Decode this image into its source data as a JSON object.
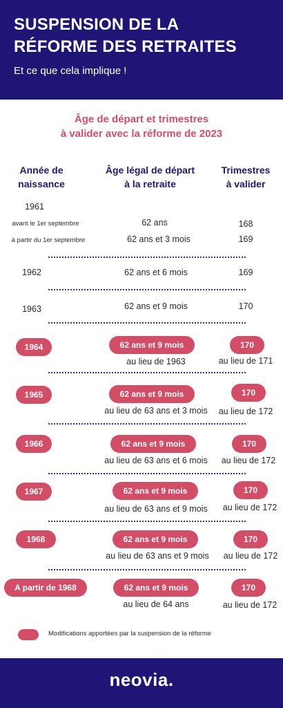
{
  "header": {
    "title_line1": "SUSPENSION DE LA",
    "title_line2": "RÉFORME DES RETRAITES",
    "subtitle": "Et ce que cela implique !"
  },
  "section_title": {
    "line1": "Âge de départ et trimestres",
    "line2": "à valider avec la réforme de 2023"
  },
  "columns": {
    "birth_year": [
      "Année de",
      "naissance"
    ],
    "legal_age": [
      "Âge légal de départ",
      "à la retraite"
    ],
    "quarters": [
      "Trimestres",
      "à valider"
    ]
  },
  "plain_rows": {
    "r1961": {
      "year": "1961",
      "sub1_label": "avant le 1er septembre",
      "sub1_age": "62 ans",
      "sub1_quarters": "168",
      "sub2_label": "à partir du 1er septembre",
      "sub2_age": "62 ans et 3 mois",
      "sub2_quarters": "169"
    },
    "r1962": {
      "year": "1962",
      "age": "62 ans et 6 mois",
      "quarters": "169"
    },
    "r1963": {
      "year": "1963",
      "age": "62 ans et 9 mois",
      "quarters": "170"
    }
  },
  "modified_rows": [
    {
      "year": "1964",
      "age": "62 ans et 9 mois",
      "age_instead": "au lieu de 1963",
      "quarters": "170",
      "quarters_instead": "au lieu de 171"
    },
    {
      "year": "1965",
      "age": "62 ans et 9 mois",
      "age_instead": "au lieu de 63 ans et 3 mois",
      "quarters": "170",
      "quarters_instead": "au lieu de 172"
    },
    {
      "year": "1966",
      "age": "62 ans et 9 mois",
      "age_instead": "au lieu de 63 ans et 6 mois",
      "quarters": "170",
      "quarters_instead": "au lieu de 172"
    },
    {
      "year": "1967",
      "age": "62 ans et 9 mois",
      "age_instead": "au lieu de 63 ans et 9 mois",
      "quarters": "170",
      "quarters_instead": "au lieu de 172"
    },
    {
      "year": "1968",
      "age": "62 ans et 9 mois",
      "age_instead": "au lieu de 63 ans et 9 mois",
      "quarters": "170",
      "quarters_instead": "au lieu de 172"
    },
    {
      "year": "A partir de 1968",
      "age": "62 ans et 9 mois",
      "age_instead": "au lieu de 64 ans",
      "quarters": "170",
      "quarters_instead": "au lieu de 172"
    }
  ],
  "legend": {
    "text": "Modifications apportées par la suspension de la réforme"
  },
  "footer": {
    "logo": "neovia."
  },
  "colors": {
    "navy": "#1f1577",
    "accent": "#d44d67"
  }
}
